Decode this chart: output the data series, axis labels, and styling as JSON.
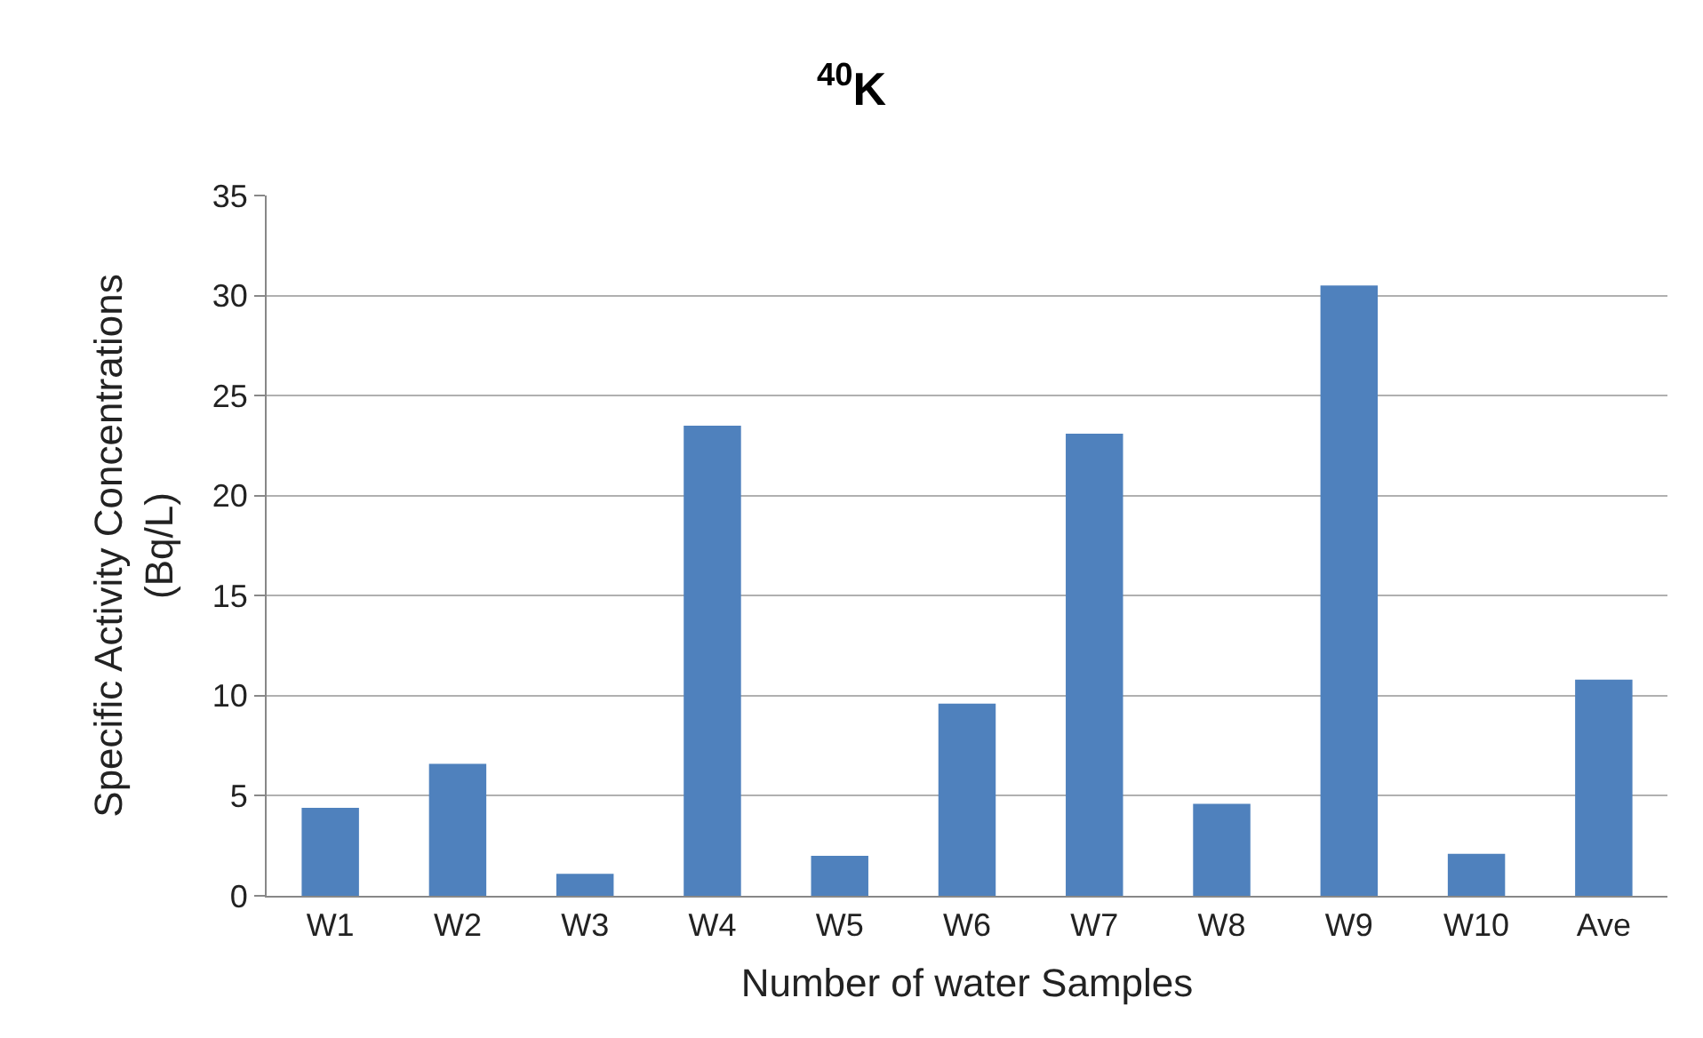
{
  "chart_data": {
    "type": "bar",
    "title": "$^{40}$K",
    "xlabel": "Number of water Samples",
    "ylabel": "Specific Activity Concentrations\n(Bq/L)",
    "categories": [
      "W1",
      "W2",
      "W3",
      "W4",
      "W5",
      "W6",
      "W7",
      "W8",
      "W9",
      "W10",
      "Ave"
    ],
    "values": [
      4.4,
      6.6,
      1.1,
      23.5,
      2.0,
      9.6,
      23.1,
      4.6,
      30.5,
      2.1,
      10.8
    ],
    "color": "#4f81bd",
    "ylim": [
      0,
      35
    ],
    "yticks": [
      0,
      5,
      10,
      15,
      20,
      25,
      30,
      35
    ],
    "grid": "y"
  }
}
